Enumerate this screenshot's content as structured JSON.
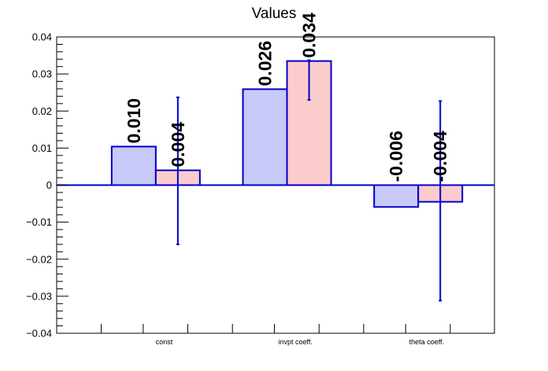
{
  "chart_data": {
    "type": "bar",
    "title": "Values",
    "categories": [
      "const",
      "invpt coeff.",
      "theta coeff."
    ],
    "ylim": [
      -0.04,
      0.04
    ],
    "yticks": [
      {
        "value": 0.04,
        "label": "0.04"
      },
      {
        "value": 0.03,
        "label": "0.03"
      },
      {
        "value": 0.02,
        "label": "0.02"
      },
      {
        "value": 0.01,
        "label": "0.01"
      },
      {
        "value": 0,
        "label": "0"
      },
      {
        "value": -0.01,
        "label": "−0.01"
      },
      {
        "value": -0.02,
        "label": "−0.02"
      },
      {
        "value": -0.03,
        "label": "−0.03"
      },
      {
        "value": -0.04,
        "label": "−0.04"
      }
    ],
    "grid": false,
    "series": [
      {
        "color": "#c9c9f7",
        "values": [
          0.0104,
          0.0259,
          -0.0059
        ],
        "labels": [
          "0.010",
          "0.026",
          "-0.006"
        ],
        "errors": [
          null,
          null,
          null
        ]
      },
      {
        "color": "#fccccc",
        "values": [
          0.004,
          0.0335,
          -0.0045
        ],
        "labels": [
          "0.004",
          "0.034",
          "-0.004"
        ],
        "errors": [
          [
            -0.016,
            0.0237
          ],
          [
            0.023,
            0.0337
          ],
          [
            -0.0312,
            0.0227
          ]
        ]
      }
    ],
    "edge_color": "#0000cc"
  }
}
